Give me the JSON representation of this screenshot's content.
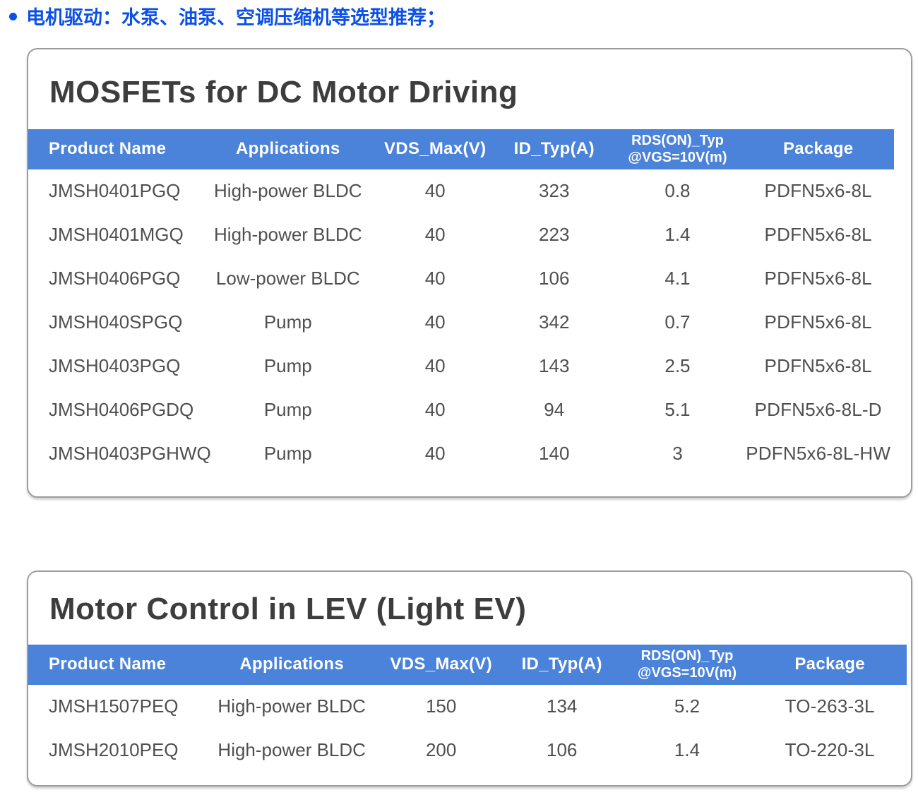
{
  "bullet": {
    "text": "电机驱动：水泵、油泵、空调压缩机等选型推荐；"
  },
  "colors": {
    "bullet-blue": "#0b50e8",
    "header-bg": "#4b82da",
    "header-text": "#ffffff",
    "title-text": "#3d3d3d",
    "body-text": "#4f4f4f",
    "card-border": "#9c9c9c"
  },
  "tables": [
    {
      "title": "MOSFETs for DC Motor Driving",
      "columns": [
        "Product Name",
        "Applications",
        "VDS_Max(V)",
        "ID_Typ(A)",
        [
          "RDS(ON)_Typ",
          "@VGS=10V(m)"
        ],
        "Package"
      ],
      "rows": [
        [
          "JMSH0401PGQ",
          "High-power BLDC",
          "40",
          "323",
          "0.8",
          "PDFN5x6-8L"
        ],
        [
          "JMSH0401MGQ",
          "High-power BLDC",
          "40",
          "223",
          "1.4",
          "PDFN5x6-8L"
        ],
        [
          "JMSH0406PGQ",
          "Low-power BLDC",
          "40",
          "106",
          "4.1",
          "PDFN5x6-8L"
        ],
        [
          "JMSH040SPGQ",
          "Pump",
          "40",
          "342",
          "0.7",
          "PDFN5x6-8L"
        ],
        [
          "JMSH0403PGQ",
          "Pump",
          "40",
          "143",
          "2.5",
          "PDFN5x6-8L"
        ],
        [
          "JMSH0406PGDQ",
          "Pump",
          "40",
          "94",
          "5.1",
          "PDFN5x6-8L-D"
        ],
        [
          "JMSH0403PGHWQ",
          "Pump",
          "40",
          "140",
          "3",
          "PDFN5x6-8L-HW"
        ]
      ]
    },
    {
      "title": "Motor Control in LEV (Light EV)",
      "columns": [
        "Product Name",
        "Applications",
        "VDS_Max(V)",
        "ID_Typ(A)",
        [
          "RDS(ON)_Typ",
          "@VGS=10V(m)"
        ],
        "Package"
      ],
      "rows": [
        [
          "JMSH1507PEQ",
          "High-power BLDC",
          "150",
          "134",
          "5.2",
          "TO-263-3L"
        ],
        [
          "JMSH2010PEQ",
          "High-power BLDC",
          "200",
          "106",
          "1.4",
          "TO-220-3L"
        ]
      ]
    }
  ]
}
